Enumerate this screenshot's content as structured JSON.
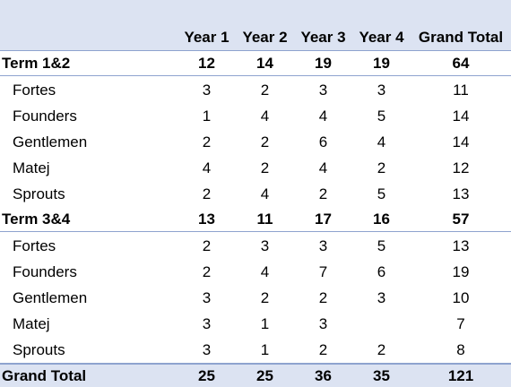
{
  "headers": [
    "",
    "Year 1",
    "Year 2",
    "Year 3",
    "Year 4",
    "Grand Total"
  ],
  "groups": [
    {
      "label": "Term 1&2",
      "values": [
        "12",
        "14",
        "19",
        "19",
        "64"
      ],
      "items": [
        {
          "label": "Fortes",
          "values": [
            "3",
            "2",
            "3",
            "3",
            "11"
          ]
        },
        {
          "label": "Founders",
          "values": [
            "1",
            "4",
            "4",
            "5",
            "14"
          ]
        },
        {
          "label": "Gentlemen",
          "values": [
            "2",
            "2",
            "6",
            "4",
            "14"
          ]
        },
        {
          "label": "Matej",
          "values": [
            "4",
            "2",
            "4",
            "2",
            "12"
          ]
        },
        {
          "label": "Sprouts",
          "values": [
            "2",
            "4",
            "2",
            "5",
            "13"
          ]
        }
      ]
    },
    {
      "label": "Term 3&4",
      "values": [
        "13",
        "11",
        "17",
        "16",
        "57"
      ],
      "items": [
        {
          "label": "Fortes",
          "values": [
            "2",
            "3",
            "3",
            "5",
            "13"
          ]
        },
        {
          "label": "Founders",
          "values": [
            "2",
            "4",
            "7",
            "6",
            "19"
          ]
        },
        {
          "label": "Gentlemen",
          "values": [
            "3",
            "2",
            "2",
            "3",
            "10"
          ]
        },
        {
          "label": "Matej",
          "values": [
            "3",
            "1",
            "3",
            "",
            "7"
          ]
        },
        {
          "label": "Sprouts",
          "values": [
            "3",
            "1",
            "2",
            "2",
            "8"
          ]
        }
      ]
    }
  ],
  "grand_total": {
    "label": "Grand Total",
    "values": [
      "25",
      "25",
      "36",
      "35",
      "121"
    ]
  }
}
